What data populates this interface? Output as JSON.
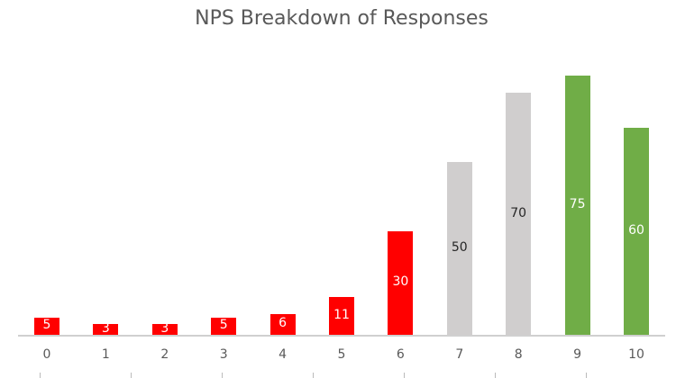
{
  "chart_data": {
    "type": "bar",
    "title": "NPS Breakdown of Responses",
    "xlabel": "",
    "ylabel": "",
    "categories": [
      "0",
      "1",
      "2",
      "3",
      "4",
      "5",
      "6",
      "7",
      "8",
      "9",
      "10"
    ],
    "values": [
      5,
      3,
      3,
      5,
      6,
      11,
      30,
      50,
      70,
      75,
      60
    ],
    "colors": [
      "#ff0000",
      "#ff0000",
      "#ff0000",
      "#ff0000",
      "#ff0000",
      "#ff0000",
      "#ff0000",
      "#d0cece",
      "#d0cece",
      "#70ad47",
      "#70ad47"
    ],
    "label_colors": [
      "#ffffff",
      "#ffffff",
      "#ffffff",
      "#ffffff",
      "#ffffff",
      "#ffffff",
      "#ffffff",
      "#262626",
      "#262626",
      "#ffffff",
      "#ffffff"
    ],
    "groups": {
      "detractors": "0-6",
      "passives": "7-8",
      "promoters": "9-10"
    },
    "grid": false,
    "ylim": [
      0,
      80
    ],
    "data_labels": true
  }
}
